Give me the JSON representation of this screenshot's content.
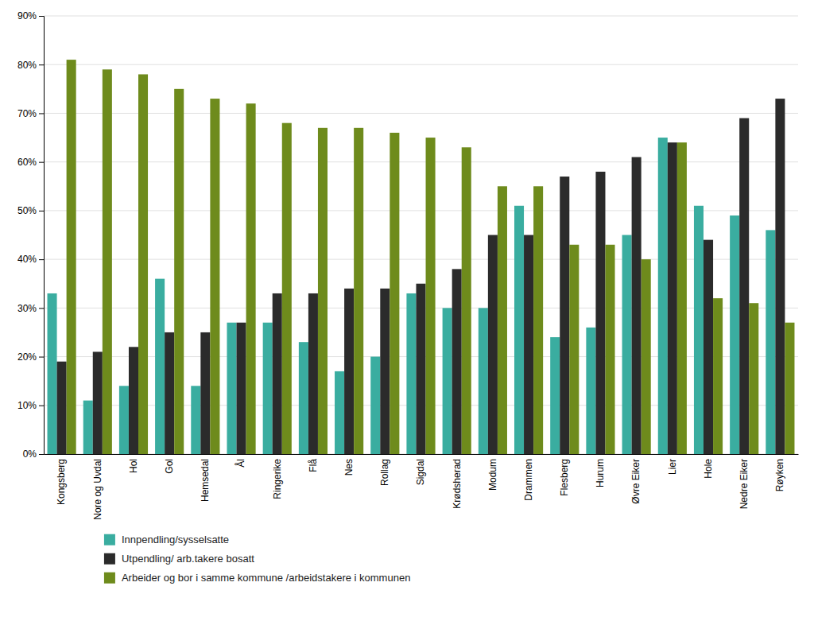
{
  "chart_data": {
    "type": "bar",
    "categories": [
      "Kongsberg",
      "Nore og Uvdal",
      "Hol",
      "Gol",
      "Hemsedal",
      "Ål",
      "Ringerike",
      "Flå",
      "Nes",
      "Rollag",
      "Sigdal",
      "Krødsherad",
      "Modum",
      "Drammen",
      "Flesberg",
      "Hurum",
      "Øvre Eiker",
      "Lier",
      "Hole",
      "Nedre Eiker",
      "Røyken"
    ],
    "series": [
      {
        "name": "Innpendling/sysselsatte",
        "color": "#3aada0",
        "values": [
          0.33,
          0.11,
          0.14,
          0.36,
          0.14,
          0.27,
          0.27,
          0.23,
          0.17,
          0.2,
          0.33,
          0.3,
          0.3,
          0.51,
          0.24,
          0.26,
          0.45,
          0.65,
          0.51,
          0.49,
          0.46
        ]
      },
      {
        "name": "Utpendling/ arb.takere bosatt",
        "color": "#2b2b2b",
        "values": [
          0.19,
          0.21,
          0.22,
          0.25,
          0.25,
          0.27,
          0.33,
          0.33,
          0.34,
          0.34,
          0.35,
          0.38,
          0.45,
          0.45,
          0.57,
          0.58,
          0.61,
          0.64,
          0.44,
          0.69,
          0.73
        ]
      },
      {
        "name": "Arbeider og bor i samme kommune /arbeidstakere i kommunen",
        "color": "#6e8b1c",
        "values": [
          0.81,
          0.79,
          0.78,
          0.75,
          0.73,
          0.72,
          0.68,
          0.67,
          0.67,
          0.66,
          0.65,
          0.63,
          0.55,
          0.55,
          0.43,
          0.43,
          0.4,
          0.64,
          0.32,
          0.31,
          0.27
        ]
      }
    ],
    "ylim": [
      0,
      0.9
    ],
    "yticks": [
      {
        "value": 0.0,
        "label": "0%"
      },
      {
        "value": 0.1,
        "label": "10%"
      },
      {
        "value": 0.2,
        "label": "20%"
      },
      {
        "value": 0.3,
        "label": "30%"
      },
      {
        "value": 0.4,
        "label": "40%"
      },
      {
        "value": 0.5,
        "label": "50%"
      },
      {
        "value": 0.6,
        "label": "60%"
      },
      {
        "value": 0.7,
        "label": "70%"
      },
      {
        "value": 0.8,
        "label": "80%"
      },
      {
        "value": 0.9,
        "label": "90%"
      }
    ],
    "grid": true,
    "legend": "bottom"
  }
}
